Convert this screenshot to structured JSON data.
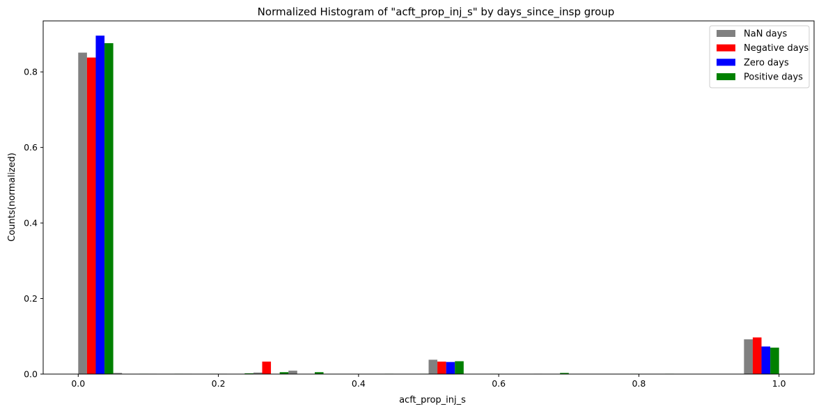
{
  "chart_data": {
    "type": "bar",
    "title": "Normalized Histogram of \"acft_prop_inj_s\" by days_since_insp group",
    "xlabel": "acft_prop_inj_s",
    "ylabel": "Counts(normalized)",
    "xlim": [
      -0.05,
      1.05
    ],
    "ylim": [
      0,
      0.935
    ],
    "xticks": [
      0.0,
      0.2,
      0.4,
      0.6,
      0.8,
      1.0
    ],
    "xtick_labels": [
      "0.0",
      "0.2",
      "0.4",
      "0.6",
      "0.8",
      "1.0"
    ],
    "yticks": [
      0.0,
      0.2,
      0.4,
      0.6,
      0.8
    ],
    "ytick_labels": [
      "0.0",
      "0.2",
      "0.4",
      "0.6",
      "0.8"
    ],
    "bins": 20,
    "bin_range": [
      0,
      1
    ],
    "grid": false,
    "legend_position": "top-right",
    "series": [
      {
        "name": "NaN days",
        "color": "#808080",
        "values": [
          0.851,
          0.003,
          0.001,
          0.001,
          0.001,
          0.004,
          0.009,
          0.0,
          0.0,
          0.0,
          0.038,
          0.0,
          0.0,
          0.001,
          0.0,
          0.0,
          0.0,
          0.0,
          0.0,
          0.092
        ]
      },
      {
        "name": "Negative days",
        "color": "#ff0000",
        "values": [
          0.838,
          0.0,
          0.0,
          0.0,
          0.0,
          0.033,
          0.0,
          0.0,
          0.0,
          0.0,
          0.033,
          0.0,
          0.0,
          0.0,
          0.0,
          0.0,
          0.0,
          0.0,
          0.0,
          0.097
        ]
      },
      {
        "name": "Zero days",
        "color": "#0000ff",
        "values": [
          0.896,
          0.0,
          0.0,
          0.0,
          0.0,
          0.0,
          0.0,
          0.0,
          0.0,
          0.0,
          0.032,
          0.0,
          0.0,
          0.0,
          0.0,
          0.0,
          0.0,
          0.0,
          0.0,
          0.073
        ]
      },
      {
        "name": "Positive days",
        "color": "#008000",
        "values": [
          0.876,
          0.001,
          0.001,
          0.001,
          0.002,
          0.005,
          0.005,
          0.0,
          0.001,
          0.001,
          0.034,
          0.001,
          0.0,
          0.003,
          0.0,
          0.001,
          0.001,
          0.0,
          0.0,
          0.07
        ]
      }
    ]
  }
}
